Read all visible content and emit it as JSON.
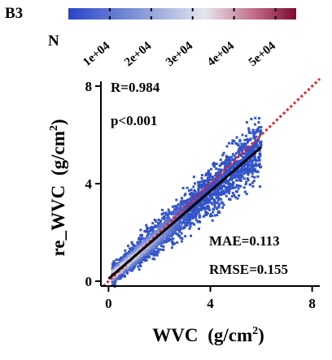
{
  "panel": {
    "label": "B3"
  },
  "colorbar": {
    "label": "N",
    "ticks": [
      "1e+04",
      "2e+04",
      "3e+04",
      "4e+04",
      "5e+04"
    ],
    "tick_values": [
      10000,
      20000,
      30000,
      40000,
      50000
    ],
    "range": [
      0,
      55000
    ],
    "colors": [
      "#2a45c8",
      "#7f93d8",
      "#e6e6ee",
      "#c06a86",
      "#7e0a30"
    ]
  },
  "chart_data": {
    "type": "scatter",
    "xlabel_main": "WVC",
    "xlabel_unit": "(g/cm",
    "xlabel_sup": "2",
    "xlabel_close": ")",
    "ylabel_main": "re_WVC",
    "ylabel_unit": "(g/cm",
    "ylabel_sup": "2",
    "ylabel_close": ")",
    "xlim": [
      -0.3,
      8.3
    ],
    "ylim": [
      -0.2,
      8.2
    ],
    "xticks": [
      0,
      4,
      8
    ],
    "yticks": [
      0,
      4,
      8
    ],
    "xtick_labels": [
      "0",
      "4",
      "8"
    ],
    "ytick_labels": [
      "0",
      "4",
      "8"
    ],
    "annotations": {
      "r": "R=0.984",
      "p": "p<0.001",
      "mae": "MAE=0.113",
      "rmse": "RMSE=0.155"
    },
    "density_cloud": {
      "x_range": [
        0.15,
        6.0
      ],
      "fit_line": {
        "x": [
          0.0,
          6.0
        ],
        "y": [
          0.1,
          5.5
        ]
      },
      "identity_line": {
        "x": [
          -0.2,
          8.3
        ],
        "y": [
          -0.2,
          8.3
        ],
        "color": "#e8202a",
        "style": "dotted"
      },
      "fit_color": "#000000",
      "low_density_color": "#3353c9",
      "high_density_color": "#8e1438"
    }
  }
}
